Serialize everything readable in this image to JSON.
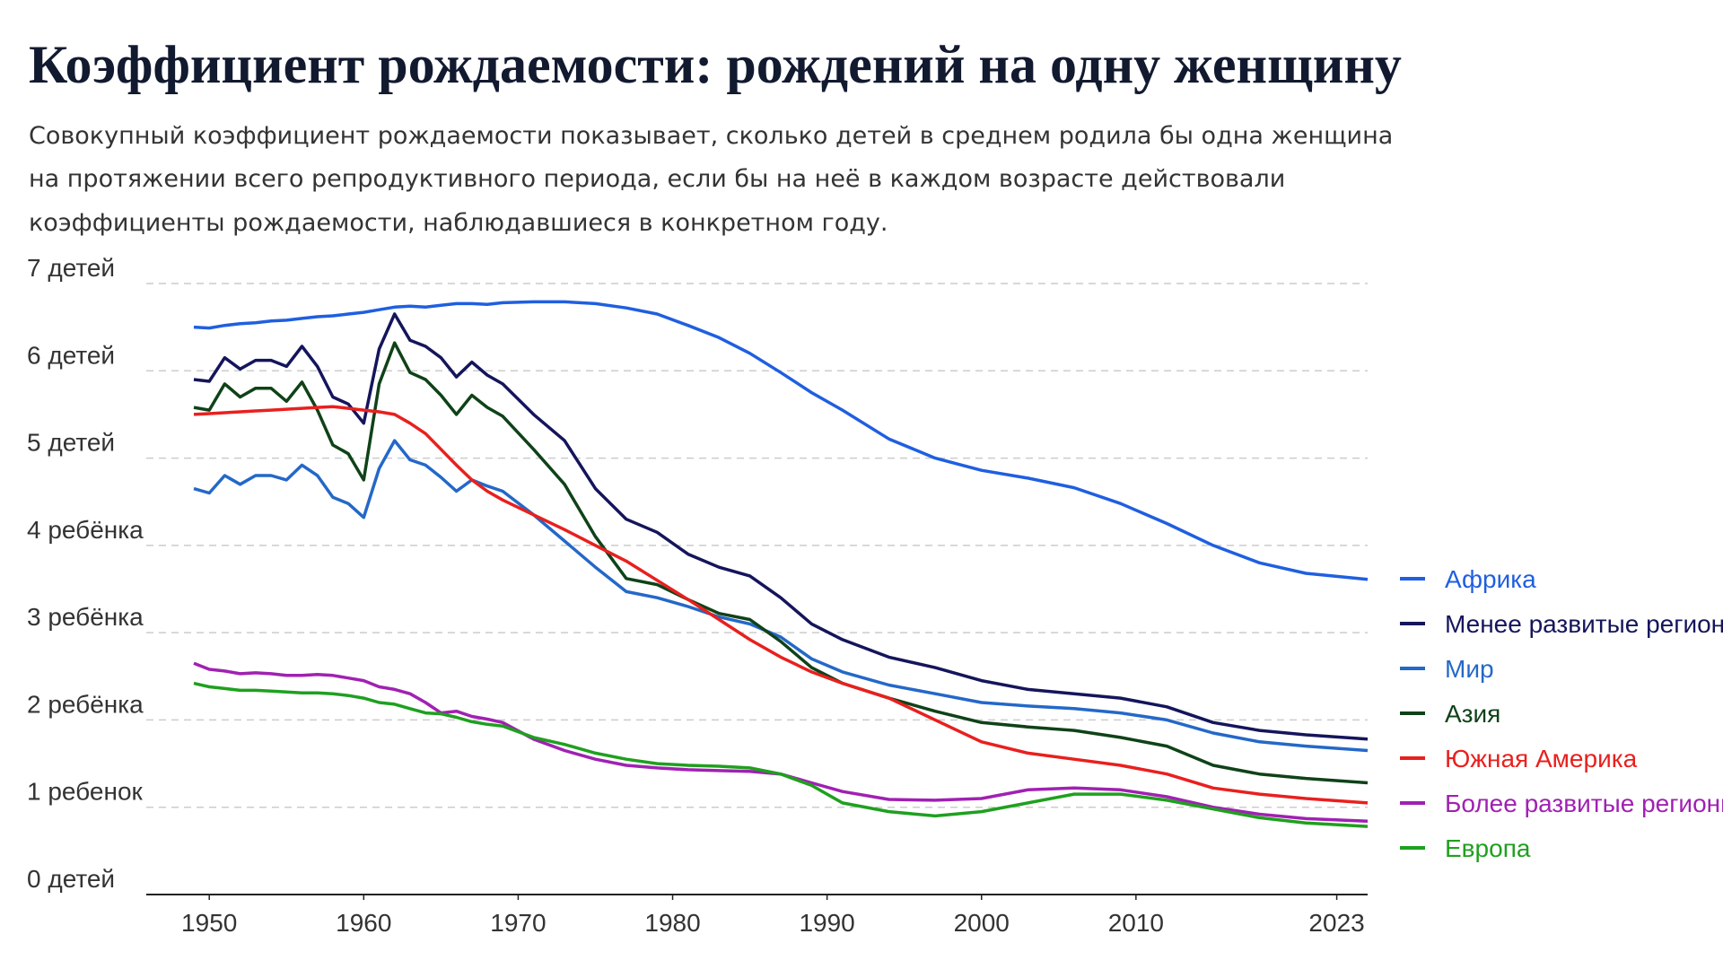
{
  "chart_data": {
    "type": "line",
    "title": "Коэффициент рождаемости: рождений на одну женщину",
    "subtitle": [
      "Совокупный коэффициент рождаемости показывает, сколько детей в среднем родила бы одна женщина",
      "на протяжении всего репродуктивного периода, если бы на неё в каждом возрасте действовали",
      "коэффициенты рождаемости, наблюдавшиеся в конкретном году."
    ],
    "x": [
      1949,
      1950,
      1951,
      1952,
      1953,
      1954,
      1955,
      1956,
      1957,
      1958,
      1959,
      1960,
      1961,
      1962,
      1963,
      1964,
      1965,
      1966,
      1967,
      1968,
      1969,
      1971,
      1973,
      1975,
      1977,
      1979,
      1981,
      1983,
      1985,
      1987,
      1989,
      1991,
      1994,
      1997,
      2000,
      2003,
      2006,
      2009,
      2012,
      2015,
      2018,
      2021,
      2025
    ],
    "xlim": [
      1949,
      2025
    ],
    "xticks": [
      1950,
      1960,
      1970,
      1980,
      1990,
      2000,
      2010,
      2023
    ],
    "ylim": [
      0,
      7
    ],
    "yticks": [
      {
        "value": 0,
        "label": "0 детей"
      },
      {
        "value": 1,
        "label": "1 ребенок"
      },
      {
        "value": 2,
        "label": "2 ребёнка"
      },
      {
        "value": 3,
        "label": "3 ребёнка"
      },
      {
        "value": 4,
        "label": "4 ребёнка"
      },
      {
        "value": 5,
        "label": "5 детей"
      },
      {
        "value": 6,
        "label": "6 детей"
      },
      {
        "value": 7,
        "label": "7 детей"
      }
    ],
    "grid": true,
    "legend": "right",
    "series": [
      {
        "name": "Африка",
        "color": "#1f5fe0",
        "values": [
          6.5,
          6.49,
          6.52,
          6.54,
          6.55,
          6.57,
          6.58,
          6.6,
          6.62,
          6.63,
          6.65,
          6.67,
          6.7,
          6.73,
          6.74,
          6.73,
          6.75,
          6.77,
          6.77,
          6.76,
          6.78,
          6.79,
          6.79,
          6.77,
          6.72,
          6.65,
          6.52,
          6.38,
          6.2,
          5.98,
          5.75,
          5.55,
          5.22,
          5.0,
          4.86,
          4.77,
          4.66,
          4.48,
          4.25,
          4.0,
          3.8,
          3.68,
          3.61
        ]
      },
      {
        "name": "Менее развитые регионы",
        "color": "#15155c",
        "values": [
          5.9,
          5.88,
          6.15,
          6.02,
          6.12,
          6.12,
          6.05,
          6.28,
          6.05,
          5.7,
          5.62,
          5.4,
          6.25,
          6.65,
          6.35,
          6.28,
          6.15,
          5.93,
          6.1,
          5.95,
          5.85,
          5.5,
          5.2,
          4.65,
          4.3,
          4.15,
          3.9,
          3.75,
          3.65,
          3.4,
          3.1,
          2.92,
          2.72,
          2.6,
          2.45,
          2.35,
          2.3,
          2.25,
          2.15,
          1.97,
          1.88,
          1.83,
          1.78
        ]
      },
      {
        "name": "Мир",
        "color": "#2468c8",
        "values": [
          4.65,
          4.6,
          4.8,
          4.7,
          4.8,
          4.8,
          4.75,
          4.92,
          4.8,
          4.55,
          4.48,
          4.32,
          4.88,
          5.2,
          4.98,
          4.92,
          4.78,
          4.62,
          4.75,
          4.68,
          4.62,
          4.35,
          4.05,
          3.75,
          3.47,
          3.4,
          3.3,
          3.18,
          3.1,
          2.95,
          2.7,
          2.55,
          2.4,
          2.3,
          2.2,
          2.16,
          2.13,
          2.08,
          2.0,
          1.85,
          1.75,
          1.7,
          1.65
        ]
      },
      {
        "name": "Азия",
        "color": "#0f4218",
        "values": [
          5.58,
          5.55,
          5.85,
          5.7,
          5.8,
          5.8,
          5.65,
          5.87,
          5.55,
          5.15,
          5.05,
          4.75,
          5.85,
          6.32,
          5.98,
          5.9,
          5.72,
          5.5,
          5.72,
          5.58,
          5.48,
          5.1,
          4.7,
          4.1,
          3.62,
          3.55,
          3.38,
          3.22,
          3.15,
          2.9,
          2.6,
          2.42,
          2.25,
          2.1,
          1.97,
          1.92,
          1.88,
          1.8,
          1.7,
          1.48,
          1.38,
          1.33,
          1.28
        ]
      },
      {
        "name": "Южная Америка",
        "color": "#e8201e",
        "values": [
          5.5,
          5.51,
          5.52,
          5.53,
          5.54,
          5.55,
          5.56,
          5.57,
          5.58,
          5.59,
          5.57,
          5.55,
          5.53,
          5.5,
          5.4,
          5.28,
          5.1,
          4.92,
          4.75,
          4.62,
          4.52,
          4.35,
          4.18,
          4.0,
          3.82,
          3.6,
          3.38,
          3.15,
          2.92,
          2.72,
          2.55,
          2.42,
          2.25,
          2.0,
          1.75,
          1.62,
          1.55,
          1.48,
          1.38,
          1.22,
          1.15,
          1.1,
          1.05
        ]
      },
      {
        "name": "Более развитые регионы",
        "color": "#a021b2",
        "values": [
          2.65,
          2.58,
          2.56,
          2.53,
          2.54,
          2.53,
          2.51,
          2.51,
          2.52,
          2.51,
          2.48,
          2.45,
          2.38,
          2.35,
          2.3,
          2.2,
          2.08,
          2.1,
          2.04,
          2.01,
          1.97,
          1.78,
          1.65,
          1.55,
          1.48,
          1.45,
          1.43,
          1.42,
          1.41,
          1.38,
          1.28,
          1.18,
          1.09,
          1.08,
          1.1,
          1.2,
          1.22,
          1.2,
          1.12,
          1.0,
          0.92,
          0.87,
          0.84
        ]
      },
      {
        "name": "Европа",
        "color": "#1fa01f",
        "values": [
          2.42,
          2.38,
          2.36,
          2.34,
          2.34,
          2.33,
          2.32,
          2.31,
          2.31,
          2.3,
          2.28,
          2.25,
          2.2,
          2.18,
          2.13,
          2.08,
          2.07,
          2.03,
          1.98,
          1.95,
          1.93,
          1.8,
          1.72,
          1.62,
          1.55,
          1.5,
          1.48,
          1.47,
          1.45,
          1.38,
          1.25,
          1.05,
          0.95,
          0.9,
          0.95,
          1.05,
          1.15,
          1.15,
          1.08,
          0.98,
          0.88,
          0.82,
          0.78
        ]
      }
    ]
  }
}
